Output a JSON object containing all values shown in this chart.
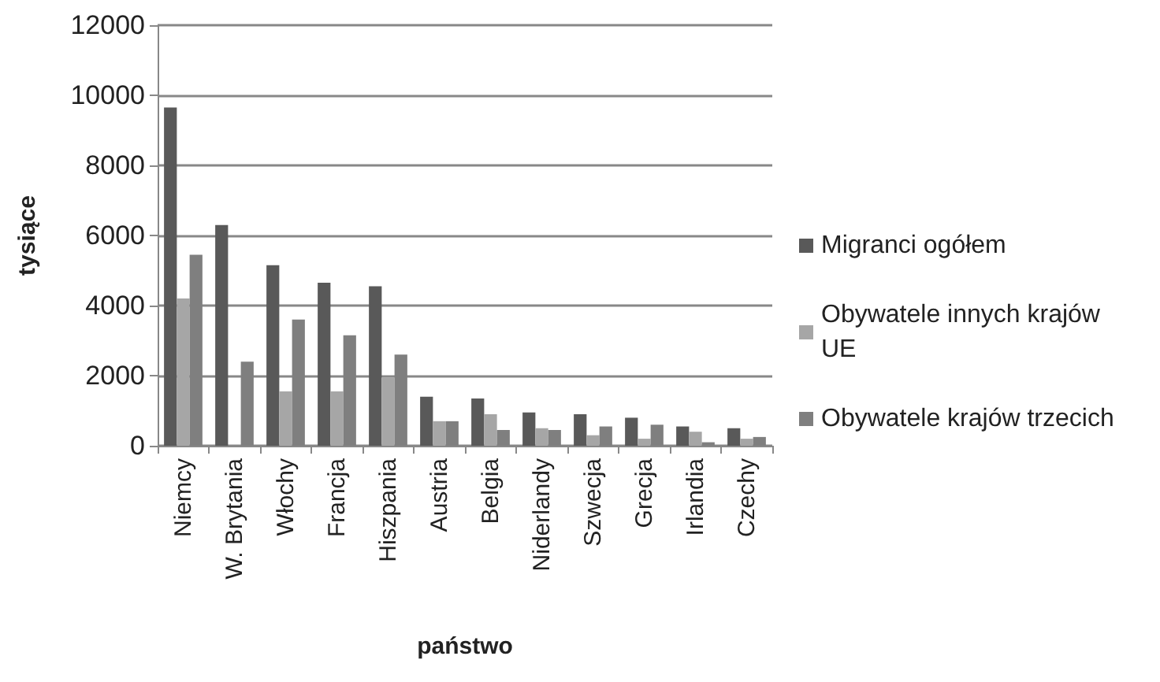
{
  "chart_data": {
    "type": "bar",
    "xlabel": "państwo",
    "ylabel": "tysiące",
    "categories": [
      "Niemcy",
      "W. Brytania",
      "Włochy",
      "Francja",
      "Hiszpania",
      "Austria",
      "Belgia",
      "Niderlandy",
      "Szwecja",
      "Grecja",
      "Irlandia",
      "Czechy"
    ],
    "series": [
      {
        "name": "Migranci ogółem",
        "color": "#595959",
        "values": [
          9650,
          6300,
          5150,
          4650,
          4550,
          1400,
          1350,
          950,
          900,
          800,
          550,
          500
        ]
      },
      {
        "name": "Obywatele innych krajów UE",
        "color": "#a6a6a6",
        "values": [
          4200,
          null,
          1550,
          1550,
          1950,
          700,
          900,
          500,
          300,
          200,
          400,
          200
        ]
      },
      {
        "name": "Obywatele krajów trzecich",
        "color": "#7f7f7f",
        "values": [
          5450,
          2400,
          3600,
          3150,
          2600,
          700,
          450,
          450,
          550,
          600,
          100,
          250
        ]
      }
    ],
    "ylim": [
      0,
      12000
    ],
    "yticks": [
      0,
      2000,
      4000,
      6000,
      8000,
      10000,
      12000
    ],
    "grid": "y",
    "legend": "right"
  }
}
